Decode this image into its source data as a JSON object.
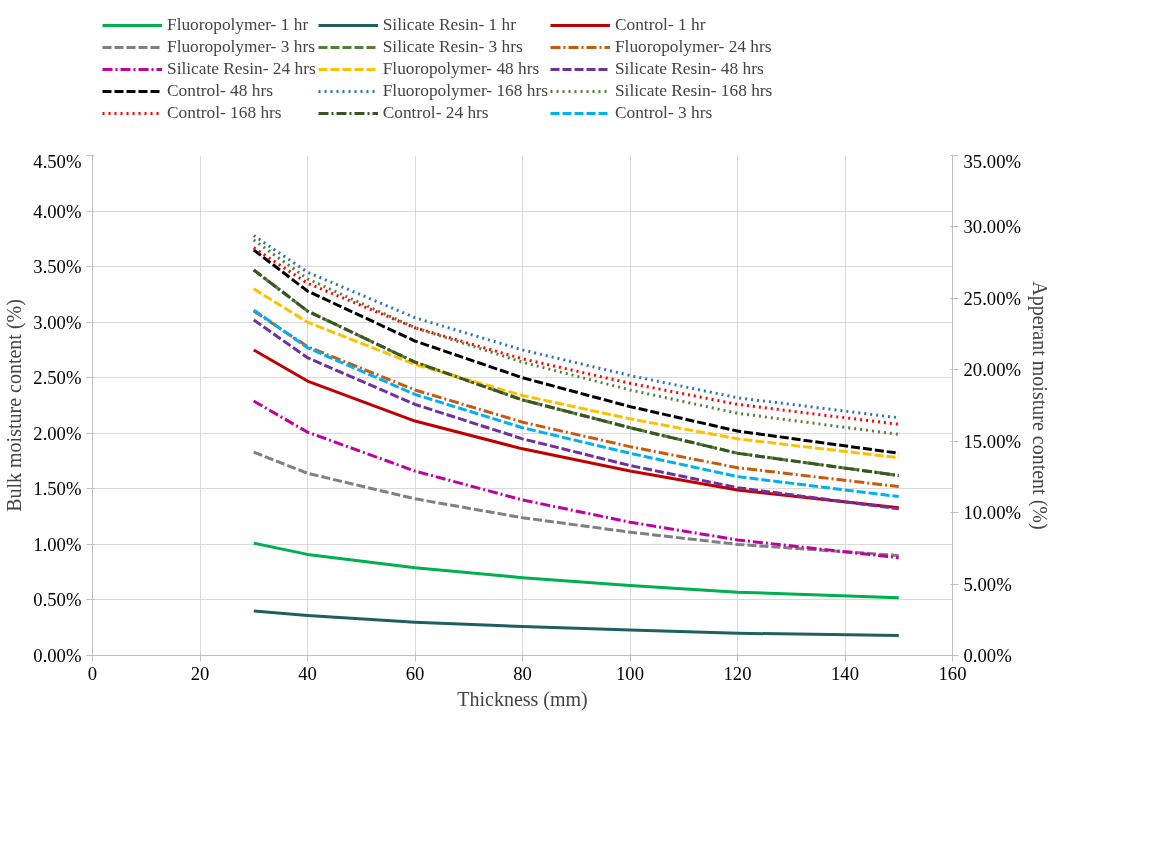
{
  "chart_data": {
    "type": "line",
    "xlabel": "Thickness (mm)",
    "ylabel": "Bulk moisture content (%)",
    "y2label": "Apperant moisture content (%)",
    "x": [
      30,
      40,
      60,
      80,
      100,
      120,
      150
    ],
    "xlim": [
      0,
      160
    ],
    "xticks": [
      0,
      20,
      40,
      60,
      80,
      100,
      120,
      140,
      160
    ],
    "ylim": [
      0,
      4.5
    ],
    "yticks": [
      {
        "value": 0,
        "label": "0.00%"
      },
      {
        "value": 0.5,
        "label": "0.50%"
      },
      {
        "value": 1,
        "label": "1.00%"
      },
      {
        "value": 1.5,
        "label": "1.50%"
      },
      {
        "value": 2,
        "label": "2.00%"
      },
      {
        "value": 2.5,
        "label": "2.50%"
      },
      {
        "value": 3,
        "label": "3.00%"
      },
      {
        "value": 3.5,
        "label": "3.50%"
      },
      {
        "value": 4,
        "label": "4.00%"
      },
      {
        "value": 4.5,
        "label": "4.50%"
      }
    ],
    "y2lim": [
      0,
      35
    ],
    "y2ticks": [
      {
        "value": 0,
        "label": "0.00%"
      },
      {
        "value": 5,
        "label": "5.00%"
      },
      {
        "value": 10,
        "label": "10.00%"
      },
      {
        "value": 15,
        "label": "15.00%"
      },
      {
        "value": 20,
        "label": "20.00%"
      },
      {
        "value": 25,
        "label": "25.00%"
      },
      {
        "value": 30,
        "label": "30.00%"
      },
      {
        "value": 35,
        "label": "35.00%"
      }
    ],
    "grid": true,
    "legend": "top",
    "series": [
      {
        "name": "Fluoropolymer- 1 hr",
        "color": "#00b050",
        "line_style": "solid",
        "values": [
          1.01,
          0.91,
          0.79,
          0.7,
          0.63,
          0.57,
          0.52
        ]
      },
      {
        "name": "Silicate Resin- 1 hr",
        "color": "#1f5f5f",
        "line_style": "solid",
        "values": [
          0.4,
          0.36,
          0.3,
          0.26,
          0.23,
          0.2,
          0.18
        ]
      },
      {
        "name": "Control- 1 hr",
        "color": "#c00000",
        "line_style": "solid",
        "values": [
          2.75,
          2.47,
          2.11,
          1.86,
          1.66,
          1.49,
          1.33
        ]
      },
      {
        "name": "Fluoropolymer- 3 hrs",
        "color": "#808080",
        "line_style": "dashed",
        "values": [
          1.83,
          1.64,
          1.41,
          1.24,
          1.11,
          1.0,
          0.9
        ]
      },
      {
        "name": "Silicate Resin- 3 hrs",
        "color": "#548235",
        "line_style": "dashed",
        "values": [
          3.47,
          3.1,
          2.64,
          2.3,
          2.05,
          1.82,
          1.62
        ]
      },
      {
        "name": "Fluoropolymer- 24 hrs",
        "color": "#c55a11",
        "line_style": "dashdot",
        "values": [
          3.1,
          2.78,
          2.39,
          2.1,
          1.88,
          1.69,
          1.52
        ]
      },
      {
        "name": "Silicate Resin- 24 hrs",
        "color": "#c000a0",
        "line_style": "dashdot",
        "values": [
          2.29,
          2.01,
          1.66,
          1.4,
          1.2,
          1.04,
          0.88
        ]
      },
      {
        "name": "Fluoropolymer- 48 hrs",
        "color": "#ffc000",
        "line_style": "dashed",
        "values": [
          3.3,
          3.0,
          2.62,
          2.34,
          2.13,
          1.95,
          1.78
        ]
      },
      {
        "name": "Silicate Resin- 48 hrs",
        "color": "#7030a0",
        "line_style": "dashed",
        "values": [
          3.02,
          2.68,
          2.26,
          1.95,
          1.71,
          1.51,
          1.32
        ]
      },
      {
        "name": "Control- 48 hrs",
        "color": "#000000",
        "line_style": "dashed",
        "values": [
          3.65,
          3.28,
          2.83,
          2.5,
          2.24,
          2.02,
          1.82
        ]
      },
      {
        "name": "Fluoropolymer- 168 hrs",
        "color": "#2e75b6",
        "line_style": "dotted",
        "values": [
          3.78,
          3.45,
          3.04,
          2.75,
          2.52,
          2.32,
          2.14
        ]
      },
      {
        "name": "Silicate Resin- 168 hrs",
        "color": "#548235",
        "line_style": "dotted",
        "values": [
          3.74,
          3.39,
          2.95,
          2.64,
          2.39,
          2.18,
          1.99
        ]
      },
      {
        "name": "Control- 168 hrs",
        "color": "#ff0000",
        "line_style": "dotted",
        "values": [
          3.67,
          3.35,
          2.95,
          2.67,
          2.45,
          2.26,
          2.08
        ]
      },
      {
        "name": "Control- 24 hrs",
        "color": "#375623",
        "line_style": "dashdot",
        "values": [
          3.47,
          3.1,
          2.64,
          2.3,
          2.05,
          1.82,
          1.62
        ]
      },
      {
        "name": "Control- 3 hrs",
        "color": "#00b0f0",
        "line_style": "dashed",
        "values": [
          3.11,
          2.77,
          2.35,
          2.05,
          1.82,
          1.61,
          1.43
        ]
      }
    ]
  }
}
